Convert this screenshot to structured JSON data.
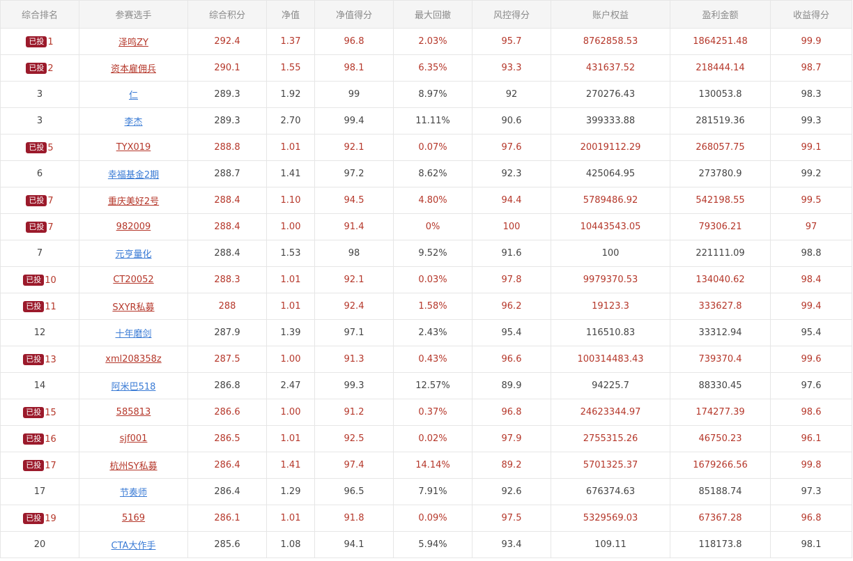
{
  "headers": [
    "综合排名",
    "参赛选手",
    "综合积分",
    "净值",
    "净值得分",
    "最大回撤",
    "风控得分",
    "账户权益",
    "盈利金额",
    "收益得分"
  ],
  "badge_label": "已投",
  "colors": {
    "invested": "#b5372a",
    "badge_bg": "#9b1a2b",
    "link": "#3a7bd5"
  },
  "rows": [
    {
      "invested": true,
      "rank": "1",
      "name": "泽鸣ZY",
      "score": "292.4",
      "nav": "1.37",
      "nav_score": "96.8",
      "drawdown": "2.03%",
      "risk_score": "95.7",
      "equity": "8762858.53",
      "profit": "1864251.48",
      "return_score": "99.9"
    },
    {
      "invested": true,
      "rank": "2",
      "name": "资本雇佣兵",
      "score": "290.1",
      "nav": "1.55",
      "nav_score": "98.1",
      "drawdown": "6.35%",
      "risk_score": "93.3",
      "equity": "431637.52",
      "profit": "218444.14",
      "return_score": "98.7"
    },
    {
      "invested": false,
      "rank": "3",
      "name": "仁",
      "score": "289.3",
      "nav": "1.92",
      "nav_score": "99",
      "drawdown": "8.97%",
      "risk_score": "92",
      "equity": "270276.43",
      "profit": "130053.8",
      "return_score": "98.3"
    },
    {
      "invested": false,
      "rank": "3",
      "name": "李杰",
      "score": "289.3",
      "nav": "2.70",
      "nav_score": "99.4",
      "drawdown": "11.11%",
      "risk_score": "90.6",
      "equity": "399333.88",
      "profit": "281519.36",
      "return_score": "99.3"
    },
    {
      "invested": true,
      "rank": "5",
      "name": "TYX019",
      "score": "288.8",
      "nav": "1.01",
      "nav_score": "92.1",
      "drawdown": "0.07%",
      "risk_score": "97.6",
      "equity": "20019112.29",
      "profit": "268057.75",
      "return_score": "99.1"
    },
    {
      "invested": false,
      "rank": "6",
      "name": "幸福基金2期",
      "score": "288.7",
      "nav": "1.41",
      "nav_score": "97.2",
      "drawdown": "8.62%",
      "risk_score": "92.3",
      "equity": "425064.95",
      "profit": "273780.9",
      "return_score": "99.2"
    },
    {
      "invested": true,
      "rank": "7",
      "name": "重庆美好2号",
      "score": "288.4",
      "nav": "1.10",
      "nav_score": "94.5",
      "drawdown": "4.80%",
      "risk_score": "94.4",
      "equity": "5789486.92",
      "profit": "542198.55",
      "return_score": "99.5"
    },
    {
      "invested": true,
      "rank": "7",
      "name": "982009",
      "score": "288.4",
      "nav": "1.00",
      "nav_score": "91.4",
      "drawdown": "0%",
      "risk_score": "100",
      "equity": "10443543.05",
      "profit": "79306.21",
      "return_score": "97"
    },
    {
      "invested": false,
      "rank": "7",
      "name": "元亨量化",
      "score": "288.4",
      "nav": "1.53",
      "nav_score": "98",
      "drawdown": "9.52%",
      "risk_score": "91.6",
      "equity": "100",
      "profit": "221111.09",
      "return_score": "98.8"
    },
    {
      "invested": true,
      "rank": "10",
      "name": "CT20052",
      "score": "288.3",
      "nav": "1.01",
      "nav_score": "92.1",
      "drawdown": "0.03%",
      "risk_score": "97.8",
      "equity": "9979370.53",
      "profit": "134040.62",
      "return_score": "98.4"
    },
    {
      "invested": true,
      "rank": "11",
      "name": "SXYR私募",
      "score": "288",
      "nav": "1.01",
      "nav_score": "92.4",
      "drawdown": "1.58%",
      "risk_score": "96.2",
      "equity": "19123.3",
      "profit": "333627.8",
      "return_score": "99.4"
    },
    {
      "invested": false,
      "rank": "12",
      "name": "十年磨剑",
      "score": "287.9",
      "nav": "1.39",
      "nav_score": "97.1",
      "drawdown": "2.43%",
      "risk_score": "95.4",
      "equity": "116510.83",
      "profit": "33312.94",
      "return_score": "95.4"
    },
    {
      "invested": true,
      "rank": "13",
      "name": "xml208358z",
      "score": "287.5",
      "nav": "1.00",
      "nav_score": "91.3",
      "drawdown": "0.43%",
      "risk_score": "96.6",
      "equity": "100314483.43",
      "profit": "739370.4",
      "return_score": "99.6"
    },
    {
      "invested": false,
      "rank": "14",
      "name": "阿米巴518",
      "score": "286.8",
      "nav": "2.47",
      "nav_score": "99.3",
      "drawdown": "12.57%",
      "risk_score": "89.9",
      "equity": "94225.7",
      "profit": "88330.45",
      "return_score": "97.6"
    },
    {
      "invested": true,
      "rank": "15",
      "name": "585813",
      "score": "286.6",
      "nav": "1.00",
      "nav_score": "91.2",
      "drawdown": "0.37%",
      "risk_score": "96.8",
      "equity": "24623344.97",
      "profit": "174277.39",
      "return_score": "98.6"
    },
    {
      "invested": true,
      "rank": "16",
      "name": "sjf001",
      "score": "286.5",
      "nav": "1.01",
      "nav_score": "92.5",
      "drawdown": "0.02%",
      "risk_score": "97.9",
      "equity": "2755315.26",
      "profit": "46750.23",
      "return_score": "96.1"
    },
    {
      "invested": true,
      "rank": "17",
      "name": "杭州SY私募",
      "score": "286.4",
      "nav": "1.41",
      "nav_score": "97.4",
      "drawdown": "14.14%",
      "risk_score": "89.2",
      "equity": "5701325.37",
      "profit": "1679266.56",
      "return_score": "99.8"
    },
    {
      "invested": false,
      "rank": "17",
      "name": "节奏师",
      "score": "286.4",
      "nav": "1.29",
      "nav_score": "96.5",
      "drawdown": "7.91%",
      "risk_score": "92.6",
      "equity": "676374.63",
      "profit": "85188.74",
      "return_score": "97.3"
    },
    {
      "invested": true,
      "rank": "19",
      "name": "5169",
      "score": "286.1",
      "nav": "1.01",
      "nav_score": "91.8",
      "drawdown": "0.09%",
      "risk_score": "97.5",
      "equity": "5329569.03",
      "profit": "67367.28",
      "return_score": "96.8"
    },
    {
      "invested": false,
      "rank": "20",
      "name": "CTA大作手",
      "score": "285.6",
      "nav": "1.08",
      "nav_score": "94.1",
      "drawdown": "5.94%",
      "risk_score": "93.4",
      "equity": "109.11",
      "profit": "118173.8",
      "return_score": "98.1"
    }
  ]
}
